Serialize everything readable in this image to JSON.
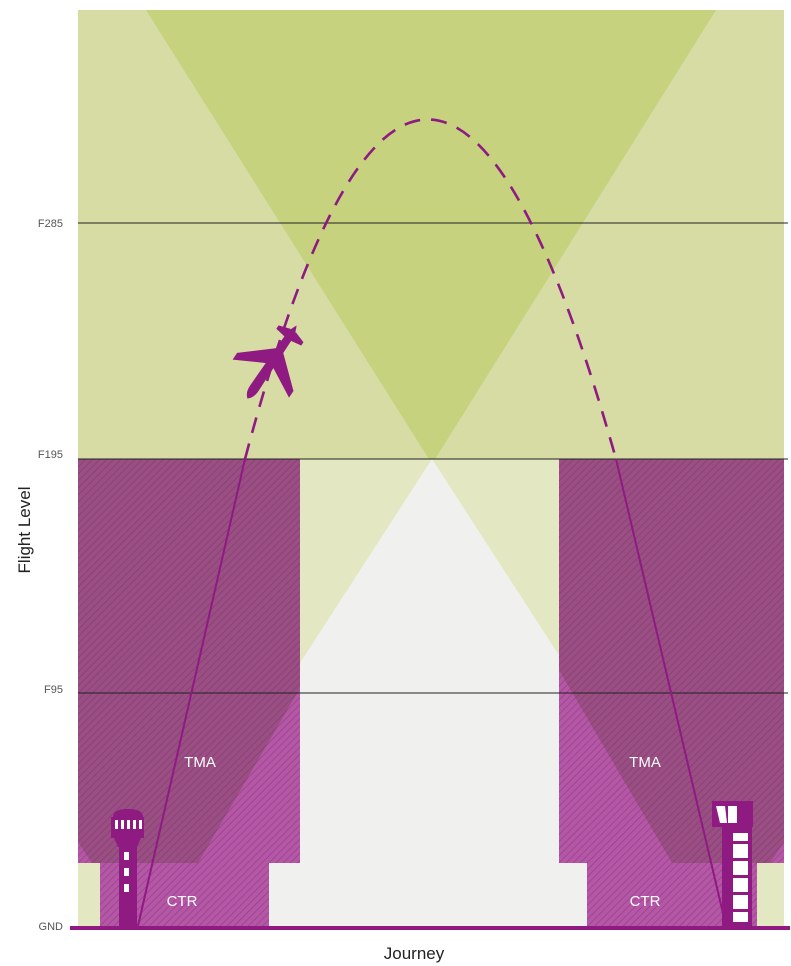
{
  "y_axis_label": "Flight Level",
  "x_axis_label": "Journey",
  "levels": [
    {
      "label": "F285"
    },
    {
      "label": "F195"
    },
    {
      "label": "F95"
    },
    {
      "label": "GND"
    }
  ],
  "zones": {
    "left_tma": "TMA",
    "left_ctr": "CTR",
    "right_tma": "TMA",
    "right_ctr": "CTR"
  },
  "colors": {
    "background": "#f0f1ef",
    "upper_airspace": "#d6dca4",
    "cone": "#c6d27e",
    "cone_lower": "#e3e8c3",
    "tma": "#9a4e84",
    "ctr": "#b556a7",
    "ground": "#8e1a82",
    "aircraft": "#8e1a82",
    "tower": "#8e1a82"
  },
  "icons": [
    "control-tower-icon",
    "control-tower-icon",
    "airplane-icon"
  ]
}
